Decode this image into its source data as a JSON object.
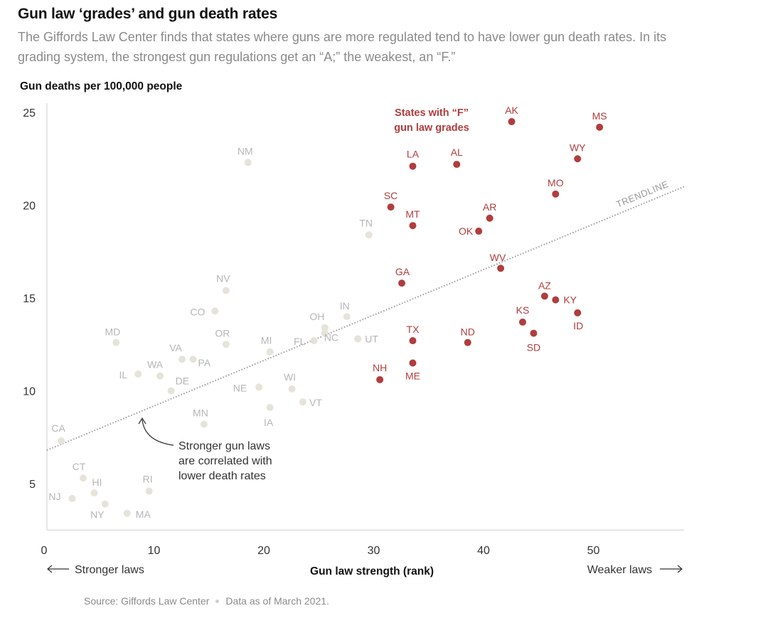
{
  "header": {
    "title": "Gun law ‘grades’ and gun death rates",
    "subtitle": "The Giffords Law Center finds that states where guns are more regulated tend to have lower gun death rates. In its grading system, the strongest gun regulations get an “A;” the weakest, an “F.”"
  },
  "footer": {
    "source": "Source: Giffords Law Center",
    "date_note": "Data as of March 2021."
  },
  "colors": {
    "f_grade": "#b13d3d",
    "other": "#e6e3da",
    "other_label": "#b5b5b5",
    "trend": "#9a9a9a",
    "axis": "#cfcfcf"
  },
  "chart_data": {
    "type": "scatter",
    "title": "Gun law ‘grades’ and gun death rates",
    "xlabel": "Gun law strength (rank)",
    "ylabel": "Gun deaths per 100,000 people",
    "xlim": [
      0,
      58
    ],
    "ylim": [
      2.5,
      25.5
    ],
    "x_ticks": [
      0,
      10,
      20,
      30,
      40,
      50
    ],
    "y_ticks": [
      5,
      10,
      15,
      20,
      25
    ],
    "x_direction_left": "Stronger laws",
    "x_direction_right": "Weaker laws",
    "grid": false,
    "series": [
      {
        "name": "States with “F” gun law grades",
        "points": [
          {
            "label": "AK",
            "x": 42.3,
            "y": 24.5
          },
          {
            "label": "MS",
            "x": 50.3,
            "y": 24.2
          },
          {
            "label": "WY",
            "x": 48.3,
            "y": 22.5
          },
          {
            "label": "LA",
            "x": 33.3,
            "y": 22.1
          },
          {
            "label": "AL",
            "x": 37.3,
            "y": 22.2
          },
          {
            "label": "MO",
            "x": 46.3,
            "y": 20.6
          },
          {
            "label": "SC",
            "x": 31.3,
            "y": 19.9
          },
          {
            "label": "AR",
            "x": 40.3,
            "y": 19.3
          },
          {
            "label": "MT",
            "x": 33.3,
            "y": 18.9
          },
          {
            "label": "OK",
            "x": 39.3,
            "y": 18.6
          },
          {
            "label": "WV",
            "x": 41.3,
            "y": 16.6
          },
          {
            "label": "GA",
            "x": 32.3,
            "y": 15.8
          },
          {
            "label": "AZ",
            "x": 45.3,
            "y": 15.1
          },
          {
            "label": "KY",
            "x": 46.3,
            "y": 14.9
          },
          {
            "label": "ID",
            "x": 48.3,
            "y": 14.2
          },
          {
            "label": "KS",
            "x": 43.3,
            "y": 13.7
          },
          {
            "label": "SD",
            "x": 44.3,
            "y": 13.1
          },
          {
            "label": "TX",
            "x": 33.3,
            "y": 12.7
          },
          {
            "label": "ND",
            "x": 38.3,
            "y": 12.6
          },
          {
            "label": "ME",
            "x": 33.3,
            "y": 11.5
          },
          {
            "label": "NH",
            "x": 30.3,
            "y": 10.6
          }
        ]
      },
      {
        "name": "",
        "points": [
          {
            "label": "NM",
            "x": 18.3,
            "y": 22.3
          },
          {
            "label": "TN",
            "x": 29.3,
            "y": 18.4
          },
          {
            "label": "NV",
            "x": 16.3,
            "y": 15.4
          },
          {
            "label": "CO",
            "x": 15.3,
            "y": 14.3
          },
          {
            "label": "IN",
            "x": 27.3,
            "y": 14.0
          },
          {
            "label": "OH",
            "x": 25.3,
            "y": 13.4
          },
          {
            "label": "MD",
            "x": 6.3,
            "y": 12.6
          },
          {
            "label": "OR",
            "x": 16.3,
            "y": 12.5
          },
          {
            "label": "MI",
            "x": 20.3,
            "y": 12.1
          },
          {
            "label": "FL",
            "x": 24.3,
            "y": 12.7
          },
          {
            "label": "NC",
            "x": 25.3,
            "y": 13.1
          },
          {
            "label": "UT",
            "x": 28.3,
            "y": 12.8
          },
          {
            "label": "VA",
            "x": 12.3,
            "y": 11.7
          },
          {
            "label": "PA",
            "x": 13.3,
            "y": 11.7
          },
          {
            "label": "WA",
            "x": 10.3,
            "y": 10.8
          },
          {
            "label": "IL",
            "x": 8.3,
            "y": 10.9
          },
          {
            "label": "DE",
            "x": 11.3,
            "y": 10.0
          },
          {
            "label": "NE",
            "x": 19.3,
            "y": 10.2
          },
          {
            "label": "WI",
            "x": 22.3,
            "y": 10.1
          },
          {
            "label": "IA",
            "x": 20.3,
            "y": 9.1
          },
          {
            "label": "VT",
            "x": 23.3,
            "y": 9.4
          },
          {
            "label": "MN",
            "x": 14.3,
            "y": 8.2
          },
          {
            "label": "CA",
            "x": 1.3,
            "y": 7.3
          },
          {
            "label": "CT",
            "x": 3.3,
            "y": 5.3
          },
          {
            "label": "HI",
            "x": 4.3,
            "y": 4.5
          },
          {
            "label": "RI",
            "x": 9.3,
            "y": 4.6
          },
          {
            "label": "NJ",
            "x": 2.3,
            "y": 4.2
          },
          {
            "label": "NY",
            "x": 5.3,
            "y": 3.9
          },
          {
            "label": "MA",
            "x": 7.3,
            "y": 3.4
          }
        ]
      }
    ],
    "trendline": {
      "label": "TRENDLINE",
      "x": [
        0,
        58
      ],
      "y": [
        6.8,
        21.0
      ]
    },
    "annotations": [
      {
        "text_lines": [
          "States with “F”",
          "gun law grades"
        ]
      },
      {
        "text_lines": [
          "Stronger gun laws",
          "are correlated with",
          "lower death rates"
        ]
      }
    ]
  }
}
